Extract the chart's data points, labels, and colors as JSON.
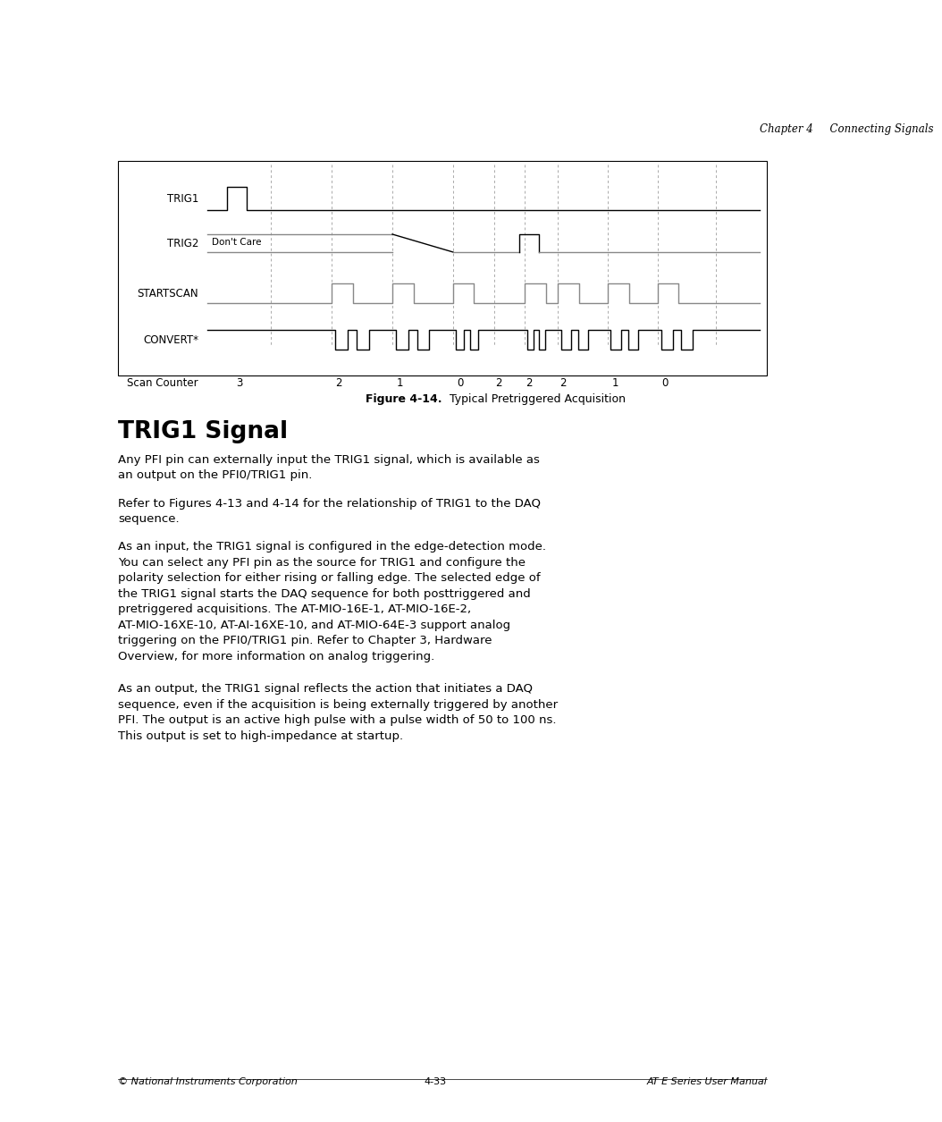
{
  "page_header_right": "Chapter 4     Connecting Signals",
  "figure_caption_bold": "Figure 4-14.",
  "figure_caption_normal": "  Typical Pretriggered Acquisition",
  "section_title": "TRIG1 Signal",
  "para1": "Any PFI pin can externally input the TRIG1 signal, which is available as\nan output on the PFI0/TRIG1 pin.",
  "para2": "Refer to Figures 4-13 and 4-14 for the relationship of TRIG1 to the DAQ\nsequence.",
  "para3_before_link": "As an input, the TRIG1 signal is configured in the edge-detection mode.\nYou can select any PFI pin as the source for TRIG1 and configure the\npolarity selection for either rising or falling edge. The selected edge of\nthe TRIG1 signal starts the DAQ sequence for both posttriggered and\npretriggered acquisitions. The AT-MIO-16E-1, AT-MIO-16E-2,\nAT-MIO-16XE-10, AT-AI-16XE-10, and AT-MIO-64E-3 support analog\ntriggering on the PFI0/TRIG1 pin. Refer to Chapter 3, ",
  "para3_link": "Hardware\nOverview",
  "para3_after_link": ", for more information on analog triggering.",
  "para4": "As an output, the TRIG1 signal reflects the action that initiates a DAQ\nsequence, even if the acquisition is being externally triggered by another\nPFI. The output is an active high pulse with a pulse width of 50 to 100 ns.\nThis output is set to high-impedance at startup.",
  "page_footer_left": "© National Instruments Corporation",
  "page_footer_center": "4-33",
  "page_footer_right": "AT E Series User Manual",
  "dont_care_label": "Don't Care",
  "scan_counter_values": [
    "3",
    "2",
    "1",
    "0",
    "2",
    "2",
    "2",
    "1",
    "0"
  ],
  "dv_rel": [
    0.115,
    0.225,
    0.335,
    0.445,
    0.52,
    0.575,
    0.635,
    0.725,
    0.815,
    0.92
  ]
}
